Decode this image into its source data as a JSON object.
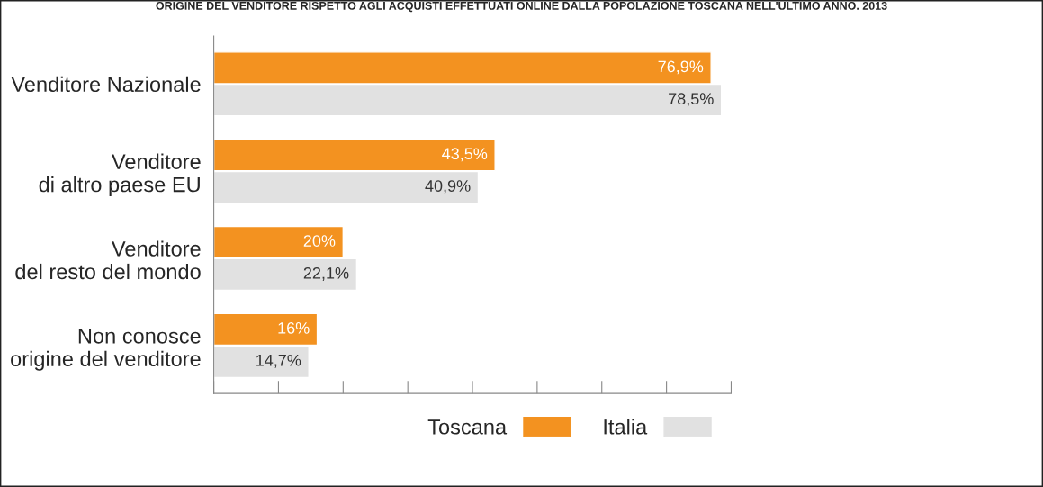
{
  "chart_data": {
    "type": "bar",
    "orientation": "horizontal",
    "title": "ORIGINE DEL VENDITORE RISPETTO AGLI ACQUISTI EFFETTUATI ONLINE DALLA POPOLAZIONE TOSCANA NELL'ULTIMO ANNO. 2013",
    "categories": [
      "Venditore Nazionale",
      "Venditore\ndi altro paese EU",
      "Venditore\ndel resto del mondo",
      "Non conosce\norigine del venditore"
    ],
    "series": [
      {
        "name": "Toscana",
        "color": "#f39220",
        "values": [
          76.9,
          43.5,
          20,
          16
        ],
        "value_labels": [
          "76,9%",
          "43,5%",
          "20%",
          "16%"
        ]
      },
      {
        "name": "Italia",
        "color": "#e1e1e1",
        "values": [
          78.5,
          40.9,
          22.1,
          14.7
        ],
        "value_labels": [
          "78,5%",
          "40,9%",
          "22,1%",
          "14,7%"
        ]
      }
    ],
    "xlim": [
      0,
      80
    ],
    "xticks": [
      {
        "value": 0,
        "label": null
      },
      {
        "value": 10,
        "label": null
      },
      {
        "value": 20,
        "label": null
      },
      {
        "value": 30,
        "label": null
      },
      {
        "value": 40,
        "label": null
      },
      {
        "value": 50,
        "label": null
      },
      {
        "value": 60,
        "label": null
      },
      {
        "value": 70,
        "label": null
      },
      {
        "value": 80,
        "label": null
      }
    ],
    "tick_labels": "y",
    "grid": false,
    "legend": "bottom right"
  }
}
